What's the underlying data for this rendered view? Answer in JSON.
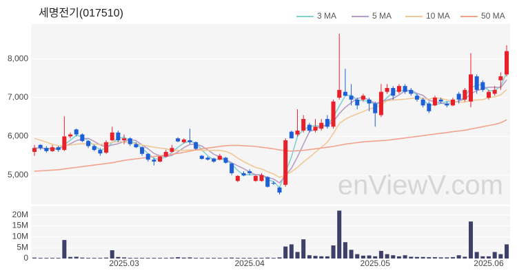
{
  "chart_data": [
    {
      "type": "candlestick",
      "title": "세명전기(017510)",
      "watermark": "enViewV.com",
      "up_color": "#e8202a",
      "down_color": "#1f5fd6",
      "open": [
        5600,
        5780,
        5700,
        5620,
        5720,
        5650,
        6000,
        6180,
        6050,
        5880,
        5750,
        5650,
        5580,
        5900,
        6100,
        5900,
        5950,
        5800,
        5720,
        5550,
        5400,
        5350,
        5480,
        5600,
        5950,
        5850,
        5900,
        5850,
        5500,
        5450,
        5430,
        5400,
        5450,
        5300,
        4850,
        5050,
        5100,
        4850,
        4850,
        4950,
        4800,
        4680,
        4750,
        6120,
        6050,
        6150,
        6300,
        6150,
        6200,
        6450,
        6250,
        7000,
        7150,
        7050,
        6950,
        6950,
        6950,
        6850,
        6550,
        7150,
        7250,
        7150,
        7300,
        7200,
        7050,
        6950,
        6850,
        6800,
        6950,
        6850,
        6800,
        7100,
        6950,
        6900,
        7550,
        7400,
        7000,
        7100,
        7450,
        7600
      ],
      "high": [
        5780,
        5800,
        5750,
        5780,
        5750,
        6520,
        6100,
        6200,
        6080,
        5900,
        5780,
        5700,
        5900,
        6250,
        6150,
        6050,
        5980,
        5850,
        5750,
        5560,
        5450,
        5500,
        5650,
        5780,
        5980,
        5950,
        6200,
        5870,
        5520,
        5480,
        5450,
        5550,
        5470,
        5320,
        5000,
        5100,
        5150,
        5000,
        5050,
        4970,
        4850,
        4700,
        5950,
        6150,
        6700,
        6550,
        6350,
        6450,
        6450,
        6550,
        6950,
        8650,
        7750,
        7350,
        7000,
        7100,
        7000,
        6900,
        7350,
        7350,
        7300,
        7350,
        7350,
        7250,
        7100,
        7000,
        6900,
        7050,
        7000,
        6900,
        7000,
        7150,
        7250,
        8150,
        7600,
        7450,
        7200,
        7300,
        7650,
        8350
      ],
      "low": [
        5500,
        5650,
        5580,
        5600,
        5600,
        5620,
        5950,
        6000,
        5850,
        5700,
        5620,
        5500,
        5550,
        5880,
        5850,
        5800,
        5750,
        5700,
        5500,
        5350,
        5250,
        5330,
        5450,
        5580,
        5850,
        5820,
        5800,
        5650,
        5400,
        5380,
        5320,
        5380,
        5300,
        5000,
        4820,
        4970,
        5000,
        4830,
        4830,
        4680,
        4750,
        4500,
        4700,
        5950,
        6000,
        6100,
        6100,
        6100,
        6150,
        6200,
        6200,
        6950,
        7050,
        6800,
        6700,
        6900,
        6650,
        6250,
        6500,
        7100,
        6950,
        7100,
        7100,
        7050,
        6900,
        6750,
        6600,
        6780,
        6850,
        6750,
        6780,
        6850,
        6900,
        6750,
        7100,
        7150,
        6950,
        7050,
        7200,
        7550
      ],
      "close": [
        5700,
        5700,
        5620,
        5720,
        5650,
        6000,
        6050,
        6050,
        5880,
        5750,
        5650,
        5560,
        5850,
        6100,
        5900,
        5950,
        5800,
        5720,
        5550,
        5400,
        5350,
        5480,
        5600,
        5700,
        5870,
        5920,
        5850,
        5680,
        5420,
        5400,
        5350,
        5500,
        5320,
        5050,
        4980,
        4990,
        5050,
        4980,
        5000,
        4700,
        4780,
        4550,
        5900,
        5950,
        6150,
        6450,
        6150,
        6250,
        6350,
        6250,
        6900,
        7200,
        7050,
        6950,
        6800,
        7050,
        6850,
        6600,
        7150,
        7250,
        7050,
        7300,
        7150,
        7100,
        6950,
        6800,
        6650,
        7000,
        6900,
        6800,
        6950,
        6950,
        7200,
        7600,
        7200,
        7200,
        7150,
        7200,
        7550,
        8200
      ],
      "series": [
        {
          "name": "3 MA",
          "color": "#7fd0d2",
          "values": [
            5700,
            5700,
            5670,
            5680,
            5660,
            5790,
            5900,
            6030,
            5990,
            5890,
            5760,
            5650,
            5690,
            5840,
            5950,
            5980,
            5880,
            5820,
            5690,
            5560,
            5430,
            5410,
            5480,
            5590,
            5720,
            5830,
            5880,
            5820,
            5650,
            5500,
            5390,
            5420,
            5390,
            5290,
            5120,
            5010,
            5010,
            5010,
            5010,
            4890,
            4830,
            4680,
            5080,
            5470,
            6000,
            6180,
            6250,
            6280,
            6250,
            6280,
            6500,
            6780,
            7050,
            7070,
            6930,
            6930,
            6900,
            6830,
            6870,
            7000,
            7150,
            7200,
            7170,
            7180,
            7070,
            6950,
            6800,
            6820,
            6850,
            6900,
            6880,
            6900,
            7030,
            7250,
            7330,
            7330,
            7180,
            7180,
            7300,
            7650
          ]
        },
        {
          "name": "5 MA",
          "color": "#b59cc6",
          "values": [
            5700,
            5700,
            5690,
            5690,
            5680,
            5740,
            5810,
            5890,
            5930,
            5950,
            5870,
            5780,
            5730,
            5780,
            5810,
            5870,
            5920,
            5890,
            5780,
            5680,
            5560,
            5500,
            5480,
            5510,
            5600,
            5710,
            5790,
            5800,
            5750,
            5650,
            5540,
            5470,
            5400,
            5320,
            5240,
            5170,
            5080,
            5010,
            5000,
            4940,
            4900,
            4800,
            4990,
            5180,
            5470,
            5800,
            6120,
            6190,
            6270,
            6290,
            6380,
            6590,
            6750,
            6870,
            6980,
            7010,
            6940,
            6850,
            6890,
            6940,
            6980,
            7070,
            7180,
            7190,
            7110,
            7060,
            6930,
            6900,
            6860,
            6830,
            6860,
            6920,
            6960,
            7100,
            7180,
            7230,
            7270,
            7270,
            7260,
            7460
          ]
        },
        {
          "name": "10 MA",
          "color": "#f1c894",
          "values": [
            5950,
            5900,
            5850,
            5800,
            5750,
            5760,
            5780,
            5800,
            5810,
            5810,
            5800,
            5790,
            5810,
            5850,
            5870,
            5860,
            5840,
            5810,
            5780,
            5750,
            5720,
            5700,
            5680,
            5640,
            5640,
            5640,
            5650,
            5650,
            5640,
            5640,
            5640,
            5640,
            5610,
            5550,
            5440,
            5350,
            5270,
            5200,
            5160,
            5090,
            5030,
            4940,
            5000,
            5090,
            5200,
            5340,
            5460,
            5590,
            5720,
            5850,
            6070,
            6330,
            6440,
            6520,
            6580,
            6640,
            6710,
            6740,
            6820,
            6920,
            6940,
            6950,
            6960,
            6980,
            7000,
            6980,
            6960,
            7000,
            6980,
            6940,
            6910,
            6880,
            6890,
            6930,
            6940,
            6950,
            7000,
            7020,
            7070,
            7210
          ]
        },
        {
          "name": "50 MA",
          "color": "#f3a18b",
          "values": [
            5100,
            5110,
            5120,
            5130,
            5140,
            5160,
            5180,
            5200,
            5220,
            5240,
            5260,
            5280,
            5300,
            5320,
            5350,
            5380,
            5400,
            5420,
            5440,
            5460,
            5480,
            5500,
            5520,
            5540,
            5560,
            5590,
            5620,
            5650,
            5680,
            5700,
            5720,
            5740,
            5760,
            5770,
            5770,
            5760,
            5750,
            5740,
            5720,
            5700,
            5680,
            5650,
            5630,
            5620,
            5630,
            5640,
            5660,
            5680,
            5700,
            5720,
            5740,
            5770,
            5800,
            5820,
            5840,
            5860,
            5870,
            5880,
            5890,
            5900,
            5920,
            5940,
            5960,
            5980,
            6000,
            6020,
            6040,
            6060,
            6080,
            6100,
            6120,
            6140,
            6160,
            6190,
            6220,
            6250,
            6280,
            6310,
            6350,
            6430
          ]
        }
      ],
      "ylim": [
        4250,
        8900
      ],
      "yticks": [
        {
          "value": 5000,
          "label": "5,000"
        },
        {
          "value": 6000,
          "label": "6,000"
        },
        {
          "value": 7000,
          "label": "7,000"
        },
        {
          "value": 8000,
          "label": "8,000"
        }
      ],
      "grid": true
    },
    {
      "type": "bar",
      "color": "#3d4068",
      "categories": [
        null,
        null,
        null,
        null,
        null,
        null,
        null,
        null,
        null,
        null,
        null,
        null,
        null,
        null,
        null,
        "2025.03",
        null,
        null,
        null,
        null,
        null,
        null,
        null,
        null,
        null,
        null,
        null,
        null,
        null,
        null,
        null,
        null,
        null,
        null,
        null,
        null,
        "2025.04",
        null,
        null,
        null,
        null,
        null,
        null,
        null,
        null,
        null,
        null,
        null,
        null,
        null,
        null,
        null,
        null,
        null,
        null,
        null,
        null,
        "2025.05",
        null,
        null,
        null,
        null,
        null,
        null,
        null,
        null,
        null,
        null,
        null,
        null,
        null,
        null,
        null,
        null,
        null,
        null,
        "2025.06",
        null,
        null,
        null
      ],
      "values": [
        400000,
        300000,
        300000,
        300000,
        300000,
        8500000,
        700000,
        800000,
        400000,
        300000,
        300000,
        300000,
        400000,
        3800000,
        700000,
        500000,
        300000,
        300000,
        300000,
        300000,
        300000,
        300000,
        300000,
        400000,
        600000,
        400000,
        500000,
        300000,
        300000,
        300000,
        300000,
        300000,
        300000,
        400000,
        300000,
        300000,
        300000,
        300000,
        300000,
        400000,
        300000,
        500000,
        5500000,
        6500000,
        3000000,
        8800000,
        1500000,
        1200000,
        1000000,
        1000000,
        6000000,
        22000000,
        7500000,
        4000000,
        2000000,
        1300000,
        1400000,
        1000000,
        3500000,
        2000000,
        1500000,
        1000000,
        1500000,
        800000,
        700000,
        700000,
        600000,
        600000,
        500000,
        500000,
        600000,
        1500000,
        800000,
        17000000,
        3000000,
        1000000,
        1000000,
        3000000,
        2000000,
        6500000
      ],
      "ylim": [
        0,
        24000000
      ],
      "yticks": [
        0,
        {
          "value": 5000000,
          "label": "5M"
        },
        {
          "value": 10000000,
          "label": "10M"
        },
        {
          "value": 15000000,
          "label": "15M"
        },
        {
          "value": 20000000,
          "label": "20M"
        }
      ],
      "grid": true
    }
  ]
}
